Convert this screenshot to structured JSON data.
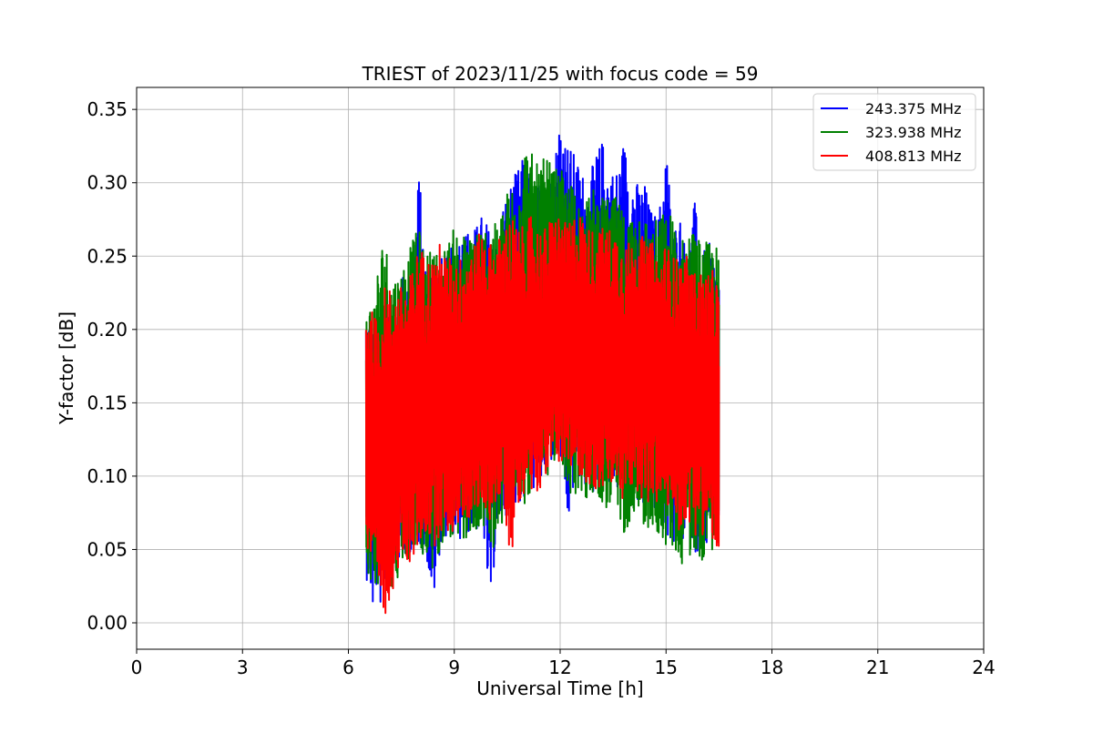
{
  "chart_data": {
    "type": "line",
    "title": "TRIEST of 2023/11/25 with focus code = 59",
    "xlabel": "Universal Time [h]",
    "ylabel": "Y-factor [dB]",
    "xlim": [
      0,
      24
    ],
    "ylim": [
      -0.018,
      0.365
    ],
    "xticks": [
      0,
      3,
      6,
      9,
      12,
      15,
      18,
      21,
      24
    ],
    "xtick_labels": [
      "0",
      "3",
      "6",
      "9",
      "12",
      "15",
      "18",
      "21",
      "24"
    ],
    "yticks": [
      0.0,
      0.05,
      0.1,
      0.15,
      0.2,
      0.25,
      0.3,
      0.35
    ],
    "ytick_labels": [
      "0.00",
      "0.05",
      "0.10",
      "0.15",
      "0.20",
      "0.25",
      "0.30",
      "0.35"
    ],
    "grid": true,
    "legend_position": "top-right",
    "series": [
      {
        "name": "243.375 MHz",
        "color": "#0000ff",
        "x": [
          6.5,
          6.6,
          6.7,
          6.8,
          6.9,
          7.0,
          7.2,
          7.4,
          7.6,
          7.8,
          8.0,
          8.2,
          8.4,
          8.6,
          8.8,
          9.0,
          9.2,
          9.4,
          9.6,
          9.8,
          10.0,
          10.2,
          10.4,
          10.6,
          10.8,
          11.0,
          11.2,
          11.4,
          11.6,
          11.8,
          12.0,
          12.2,
          12.4,
          12.6,
          12.8,
          13.0,
          13.2,
          13.4,
          13.6,
          13.8,
          14.0,
          14.2,
          14.4,
          14.6,
          14.8,
          15.0,
          15.2,
          15.4,
          15.6,
          15.8,
          16.0,
          16.2,
          16.4,
          16.5
        ],
        "min": [
          0.03,
          0.025,
          0.005,
          0.02,
          0.01,
          0.02,
          0.03,
          0.04,
          0.04,
          0.05,
          0.05,
          0.045,
          0.01,
          0.05,
          0.06,
          0.06,
          0.05,
          0.06,
          0.06,
          0.07,
          0.0,
          0.06,
          0.07,
          0.08,
          0.08,
          0.08,
          0.09,
          0.09,
          0.1,
          0.11,
          0.11,
          0.06,
          0.09,
          0.1,
          0.08,
          0.09,
          0.1,
          0.09,
          0.09,
          0.08,
          0.09,
          0.08,
          0.07,
          0.08,
          0.07,
          0.06,
          0.05,
          0.05,
          0.06,
          0.05,
          0.04,
          0.05,
          0.06,
          0.06
        ],
        "max": [
          0.22,
          0.21,
          0.2,
          0.2,
          0.21,
          0.22,
          0.22,
          0.23,
          0.24,
          0.24,
          0.31,
          0.24,
          0.25,
          0.25,
          0.25,
          0.26,
          0.27,
          0.27,
          0.27,
          0.28,
          0.27,
          0.26,
          0.29,
          0.3,
          0.31,
          0.32,
          0.3,
          0.3,
          0.3,
          0.31,
          0.35,
          0.33,
          0.32,
          0.31,
          0.3,
          0.32,
          0.33,
          0.31,
          0.31,
          0.33,
          0.31,
          0.3,
          0.3,
          0.28,
          0.28,
          0.33,
          0.27,
          0.28,
          0.25,
          0.29,
          0.25,
          0.26,
          0.25,
          0.24
        ]
      },
      {
        "name": "323.938 MHz",
        "color": "#008000",
        "x": [
          6.5,
          6.6,
          6.7,
          6.8,
          6.9,
          7.0,
          7.2,
          7.4,
          7.6,
          7.8,
          8.0,
          8.2,
          8.4,
          8.6,
          8.8,
          9.0,
          9.2,
          9.4,
          9.6,
          9.8,
          10.0,
          10.2,
          10.4,
          10.6,
          10.8,
          11.0,
          11.2,
          11.4,
          11.6,
          11.8,
          12.0,
          12.2,
          12.4,
          12.6,
          12.8,
          13.0,
          13.2,
          13.4,
          13.6,
          13.8,
          14.0,
          14.2,
          14.4,
          14.6,
          14.8,
          15.0,
          15.2,
          15.4,
          15.6,
          15.8,
          16.0,
          16.2,
          16.4,
          16.5
        ],
        "min": [
          0.04,
          0.03,
          0.02,
          0.03,
          0.02,
          0.03,
          0.02,
          0.03,
          0.04,
          0.04,
          0.05,
          0.04,
          0.03,
          0.05,
          0.06,
          0.05,
          0.05,
          0.06,
          0.05,
          0.07,
          0.04,
          0.06,
          0.07,
          0.07,
          0.08,
          0.08,
          0.09,
          0.09,
          0.1,
          0.1,
          0.11,
          0.09,
          0.08,
          0.09,
          0.08,
          0.09,
          0.08,
          0.07,
          0.07,
          0.06,
          0.07,
          0.08,
          0.06,
          0.06,
          0.06,
          0.05,
          0.05,
          0.04,
          0.04,
          0.05,
          0.04,
          0.05,
          0.05,
          0.05
        ],
        "max": [
          0.22,
          0.22,
          0.22,
          0.24,
          0.25,
          0.27,
          0.24,
          0.24,
          0.25,
          0.26,
          0.27,
          0.25,
          0.26,
          0.25,
          0.26,
          0.27,
          0.27,
          0.26,
          0.28,
          0.27,
          0.28,
          0.27,
          0.29,
          0.3,
          0.31,
          0.33,
          0.32,
          0.31,
          0.32,
          0.31,
          0.31,
          0.3,
          0.3,
          0.29,
          0.29,
          0.3,
          0.29,
          0.29,
          0.29,
          0.28,
          0.28,
          0.29,
          0.28,
          0.27,
          0.28,
          0.28,
          0.28,
          0.26,
          0.27,
          0.27,
          0.26,
          0.26,
          0.26,
          0.25
        ]
      },
      {
        "name": "408.813 MHz",
        "color": "#ff0000",
        "x": [
          6.5,
          6.6,
          6.7,
          6.8,
          6.9,
          7.0,
          7.2,
          7.4,
          7.6,
          7.8,
          8.0,
          8.2,
          8.4,
          8.6,
          8.8,
          9.0,
          9.2,
          9.4,
          9.6,
          9.8,
          10.0,
          10.2,
          10.4,
          10.6,
          10.8,
          11.0,
          11.2,
          11.4,
          11.6,
          11.8,
          12.0,
          12.2,
          12.4,
          12.6,
          12.8,
          13.0,
          13.2,
          13.4,
          13.6,
          13.8,
          14.0,
          14.2,
          14.4,
          14.6,
          14.8,
          15.0,
          15.2,
          15.4,
          15.6,
          15.8,
          16.0,
          16.2,
          16.4,
          16.5
        ],
        "min": [
          0.05,
          0.04,
          0.03,
          0.02,
          0.01,
          0.0,
          0.02,
          0.03,
          0.04,
          0.04,
          0.05,
          0.06,
          0.05,
          0.06,
          0.06,
          0.06,
          0.07,
          0.07,
          0.07,
          0.08,
          0.07,
          0.08,
          0.08,
          0.04,
          0.08,
          0.09,
          0.09,
          0.09,
          0.1,
          0.11,
          0.11,
          0.1,
          0.1,
          0.1,
          0.09,
          0.09,
          0.09,
          0.09,
          0.09,
          0.08,
          0.09,
          0.09,
          0.08,
          0.08,
          0.08,
          0.08,
          0.07,
          0.06,
          0.07,
          0.06,
          0.06,
          0.06,
          0.05,
          0.025
        ],
        "max": [
          0.22,
          0.22,
          0.21,
          0.21,
          0.22,
          0.23,
          0.23,
          0.23,
          0.23,
          0.24,
          0.26,
          0.25,
          0.25,
          0.26,
          0.25,
          0.25,
          0.25,
          0.26,
          0.26,
          0.27,
          0.26,
          0.26,
          0.27,
          0.28,
          0.27,
          0.27,
          0.28,
          0.27,
          0.27,
          0.28,
          0.28,
          0.27,
          0.28,
          0.28,
          0.27,
          0.27,
          0.27,
          0.27,
          0.27,
          0.26,
          0.26,
          0.27,
          0.26,
          0.26,
          0.25,
          0.26,
          0.25,
          0.25,
          0.25,
          0.24,
          0.24,
          0.24,
          0.24,
          0.23
        ]
      }
    ]
  }
}
